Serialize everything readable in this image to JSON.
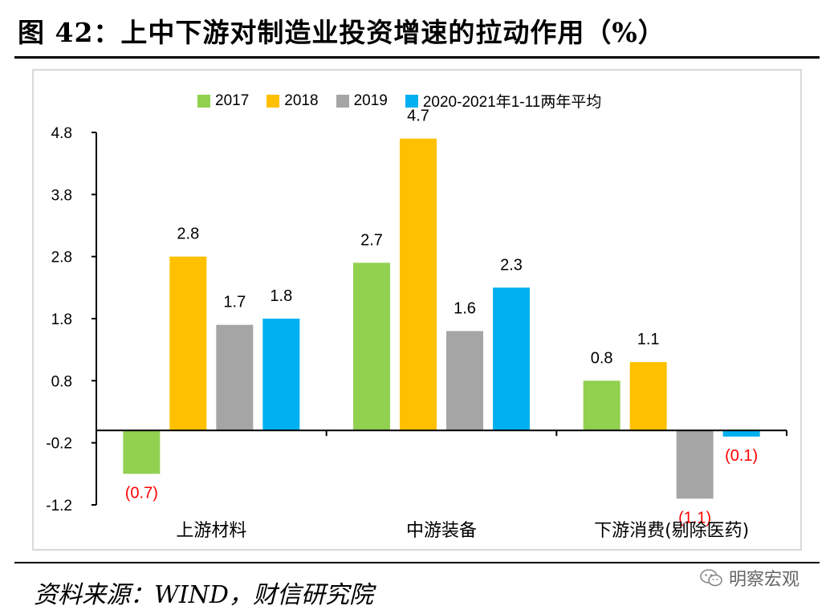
{
  "title": "图 42：上中下游对制造业投资增速的拉动作用（%）",
  "source": "资料来源：WIND，财信研究院",
  "watermark": "明察宏观",
  "chart_data": {
    "type": "bar",
    "categories": [
      "上游材料",
      "中游装备",
      "下游消费(剔除医药)"
    ],
    "series": [
      {
        "name": "2017",
        "color": "#92d050",
        "values": [
          -0.7,
          2.7,
          0.8
        ],
        "labels": [
          "(0.7)",
          "2.7",
          "0.8"
        ]
      },
      {
        "name": "2018",
        "color": "#ffc000",
        "values": [
          2.8,
          4.7,
          1.1
        ],
        "labels": [
          "2.8",
          "4.7",
          "1.1"
        ]
      },
      {
        "name": "2019",
        "color": "#a5a5a5",
        "values": [
          1.7,
          1.6,
          -1.1
        ],
        "labels": [
          "1.7",
          "1.6",
          "(1.1)"
        ]
      },
      {
        "name": "2020-2021年1-11两年平均",
        "color": "#00b0f0",
        "values": [
          1.8,
          2.3,
          -0.1
        ],
        "labels": [
          "1.8",
          "2.3",
          "(0.1)"
        ]
      }
    ],
    "yticks": [
      "4.8",
      "3.8",
      "2.8",
      "1.8",
      "0.8",
      "-0.2",
      "-1.2"
    ],
    "ylim": [
      -1.2,
      4.8
    ],
    "negative_label_color": "#ff0000",
    "legend_position": "top",
    "grid": false
  }
}
